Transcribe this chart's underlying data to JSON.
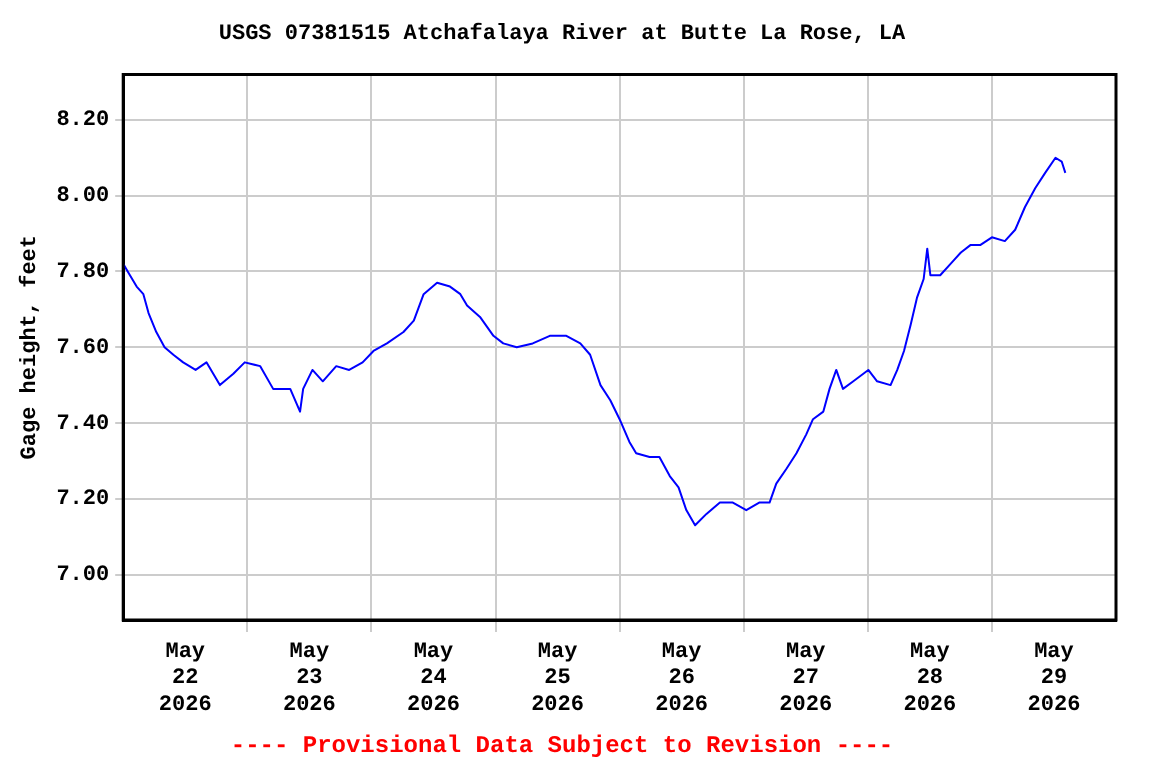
{
  "chart_data": {
    "type": "line",
    "title": "USGS 07381515 Atchafalaya River at Butte La Rose, LA",
    "ylabel": "Gage height, feet",
    "annotations": [
      "---- Provisional Data Subject to Revision ----"
    ],
    "x": [
      "2026-05-22T00:00",
      "2026-05-22T01:18",
      "2026-05-22T02:36",
      "2026-05-22T03:54",
      "2026-05-22T04:54",
      "2026-05-22T06:24",
      "2026-05-22T08:00",
      "2026-05-22T09:42",
      "2026-05-22T11:36",
      "2026-05-22T14:00",
      "2026-05-22T16:06",
      "2026-05-22T18:42",
      "2026-05-22T21:18",
      "2026-05-22T23:30",
      "2026-05-23T02:30",
      "2026-05-23T05:00",
      "2026-05-23T08:18",
      "2026-05-23T10:12",
      "2026-05-23T10:48",
      "2026-05-23T12:36",
      "2026-05-23T14:36",
      "2026-05-23T17:12",
      "2026-05-23T19:42",
      "2026-05-23T22:18",
      "2026-05-24T00:24",
      "2026-05-24T03:00",
      "2026-05-24T06:12",
      "2026-05-24T08:12",
      "2026-05-24T10:06",
      "2026-05-24T12:42",
      "2026-05-24T15:12",
      "2026-05-24T17:12",
      "2026-05-24T18:30",
      "2026-05-24T21:00",
      "2026-05-24T23:36",
      "2026-05-25T01:30",
      "2026-05-25T04:06",
      "2026-05-25T07:12",
      "2026-05-25T10:30",
      "2026-05-25T13:42",
      "2026-05-25T16:24",
      "2026-05-25T18:18",
      "2026-05-25T20:18",
      "2026-05-25T22:12",
      "2026-05-26T00:00",
      "2026-05-26T01:54",
      "2026-05-26T03:12",
      "2026-05-26T05:48",
      "2026-05-26T07:42",
      "2026-05-26T09:42",
      "2026-05-26T11:24",
      "2026-05-26T12:54",
      "2026-05-26T14:36",
      "2026-05-26T16:48",
      "2026-05-26T19:24",
      "2026-05-26T21:54",
      "2026-05-27T00:30",
      "2026-05-27T03:00",
      "2026-05-27T05:00",
      "2026-05-27T06:18",
      "2026-05-27T08:18",
      "2026-05-27T10:12",
      "2026-05-27T12:06",
      "2026-05-27T13:24",
      "2026-05-27T15:24",
      "2026-05-27T16:36",
      "2026-05-27T17:54",
      "2026-05-27T19:12",
      "2026-05-27T21:12",
      "2026-05-28T00:06",
      "2026-05-28T01:48",
      "2026-05-28T04:24",
      "2026-05-28T05:42",
      "2026-05-28T07:00",
      "2026-05-28T08:18",
      "2026-05-28T09:30",
      "2026-05-28T10:48",
      "2026-05-28T11:30",
      "2026-05-28T12:06",
      "2026-05-28T14:00",
      "2026-05-28T16:00",
      "2026-05-28T18:00",
      "2026-05-28T19:54",
      "2026-05-28T21:48",
      "2026-05-29T00:00",
      "2026-05-29T02:30",
      "2026-05-29T04:30",
      "2026-05-29T06:24",
      "2026-05-29T08:24",
      "2026-05-29T10:18",
      "2026-05-29T12:18",
      "2026-05-29T13:30",
      "2026-05-29T14:12"
    ],
    "series": [
      {
        "color": "#0000ff",
        "values": [
          7.82,
          7.79,
          7.76,
          7.74,
          7.69,
          7.64,
          7.6,
          7.58,
          7.56,
          7.54,
          7.56,
          7.5,
          7.53,
          7.56,
          7.55,
          7.49,
          7.49,
          7.43,
          7.49,
          7.54,
          7.51,
          7.55,
          7.54,
          7.56,
          7.59,
          7.61,
          7.64,
          7.67,
          7.74,
          7.77,
          7.76,
          7.74,
          7.71,
          7.68,
          7.63,
          7.61,
          7.6,
          7.61,
          7.63,
          7.63,
          7.61,
          7.58,
          7.5,
          7.46,
          7.41,
          7.35,
          7.32,
          7.31,
          7.31,
          7.26,
          7.23,
          7.17,
          7.13,
          7.16,
          7.19,
          7.19,
          7.17,
          7.19,
          7.19,
          7.24,
          7.28,
          7.32,
          7.37,
          7.41,
          7.43,
          7.49,
          7.54,
          7.49,
          7.51,
          7.54,
          7.51,
          7.5,
          7.54,
          7.59,
          7.66,
          7.73,
          7.78,
          7.86,
          7.79,
          7.79,
          7.82,
          7.85,
          7.87,
          7.87,
          7.89,
          7.88,
          7.91,
          7.97,
          8.02,
          8.06,
          8.1,
          8.09,
          8.06
        ]
      }
    ],
    "xlim": [
      "2026-05-22T00:00",
      "2026-05-30T00:00"
    ],
    "xticks": [
      {
        "value": "2026-05-22T12:00",
        "label": "May\n22\n2026"
      },
      {
        "value": "2026-05-23T00:00",
        "label": null
      },
      {
        "value": "2026-05-23T12:00",
        "label": "May\n23\n2026"
      },
      {
        "value": "2026-05-24T00:00",
        "label": null
      },
      {
        "value": "2026-05-24T12:00",
        "label": "May\n24\n2026"
      },
      {
        "value": "2026-05-25T00:00",
        "label": null
      },
      {
        "value": "2026-05-25T12:00",
        "label": "May\n25\n2026"
      },
      {
        "value": "2026-05-26T00:00",
        "label": null
      },
      {
        "value": "2026-05-26T12:00",
        "label": "May\n26\n2026"
      },
      {
        "value": "2026-05-27T00:00",
        "label": null
      },
      {
        "value": "2026-05-27T12:00",
        "label": "May\n27\n2026"
      },
      {
        "value": "2026-05-28T00:00",
        "label": null
      },
      {
        "value": "2026-05-28T12:00",
        "label": "May\n28\n2026"
      },
      {
        "value": "2026-05-29T00:00",
        "label": null
      },
      {
        "value": "2026-05-29T12:00",
        "label": "May\n29\n2026"
      }
    ],
    "ylim": [
      6.88,
      8.32
    ],
    "yticks": [
      {
        "value": 7.0,
        "label": "7.00"
      },
      {
        "value": 7.2,
        "label": "7.20"
      },
      {
        "value": 7.4,
        "label": "7.40"
      },
      {
        "value": 7.6,
        "label": "7.60"
      },
      {
        "value": 7.8,
        "label": "7.80"
      },
      {
        "value": 8.0,
        "label": "8.00"
      },
      {
        "value": 8.2,
        "label": "8.20"
      }
    ],
    "grid": true,
    "legend": false,
    "marker": "none",
    "line_style": "solid"
  }
}
